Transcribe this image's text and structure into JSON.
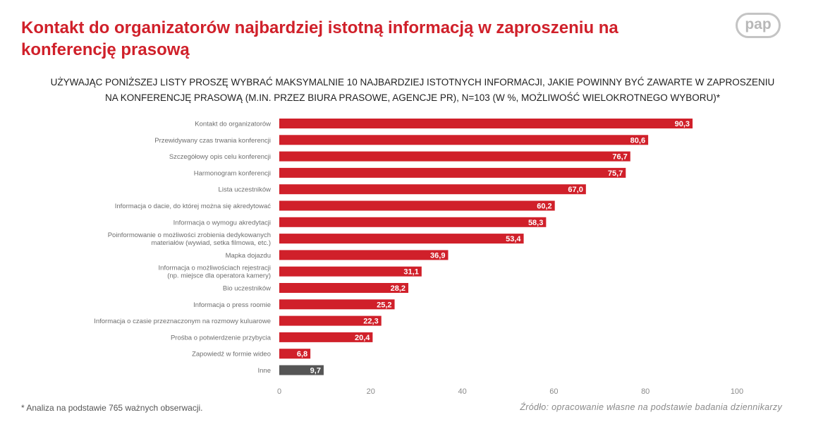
{
  "header": {
    "title": "Kontakt do organizatorów najbardziej istotną informacją w zaproszeniu na konferencję prasową",
    "logo_text": "pap"
  },
  "subtitle": {
    "line1": "UŻYWAJĄC PONIŻSZEJ LISTY PROSZĘ WYBRAĆ MAKSYMALNIE 10 NAJBARDZIEJ ISTOTNYCH INFORMACJI, JAKIE POWINNY BYĆ ZAWARTE W ZAPROSZENIU",
    "line2": "NA KONFERENCJĘ PRASOWĄ (M.IN. PRZEZ BIURA PRASOWE, AGENCJE PR), N=103 (W %, MOŻLIWOŚĆ WIELOKROTNEGO WYBORU)*"
  },
  "footer": {
    "footnote": "* Analiza na podstawie 765 ważnych obserwacji.",
    "source": "Źródło: opracowanie własne na podstawie badania dziennikarzy"
  },
  "colors": {
    "bar": "#d0202a",
    "bar_other": "#555555",
    "title": "#d0202a"
  },
  "chart_data": {
    "type": "bar",
    "orientation": "horizontal",
    "title": "Kontakt do organizatorów najbardziej istotną informacją w zaproszeniu na konferencję prasową",
    "xlabel": "",
    "ylabel": "",
    "xlim": [
      0,
      100
    ],
    "xticks": [
      0,
      20,
      40,
      60,
      80,
      100
    ],
    "grid": false,
    "categories": [
      [
        "Kontakt do organizatorów"
      ],
      [
        "Przewidywany czas trwania konferencji"
      ],
      [
        "Szczegółowy opis celu konferencji"
      ],
      [
        "Harmonogram konferencji"
      ],
      [
        "Lista uczestników"
      ],
      [
        "Informacja o dacie, do której można się akredytować"
      ],
      [
        "Informacja o wymogu akredytacji"
      ],
      [
        "Poinformowanie o możliwości zrobienia dedykowanych",
        "materiałów (wywiad, setka filmowa, etc.)"
      ],
      [
        "Mapka dojazdu"
      ],
      [
        "Informacja o możliwościach rejestracji",
        "(np. miejsce dla operatora kamery)"
      ],
      [
        "Bio uczestników"
      ],
      [
        "Informacja o press roomie"
      ],
      [
        "Informacja o czasie przeznaczonym na rozmowy kuluarowe"
      ],
      [
        "Prośba o potwierdzenie przybycia"
      ],
      [
        "Zapowiedź w formie wideo"
      ],
      [
        "Inne"
      ]
    ],
    "values": [
      90.3,
      80.6,
      76.7,
      75.7,
      67.0,
      60.2,
      58.3,
      53.4,
      36.9,
      31.1,
      28.2,
      25.2,
      22.3,
      20.4,
      6.8,
      9.7
    ],
    "value_labels": [
      "90,3",
      "80,6",
      "76,7",
      "75,7",
      "67,0",
      "60,2",
      "58,3",
      "53,4",
      "36,9",
      "31,1",
      "28,2",
      "25,2",
      "22,3",
      "20,4",
      "6,8",
      "9,7"
    ],
    "highlight_other": [
      false,
      false,
      false,
      false,
      false,
      false,
      false,
      false,
      false,
      false,
      false,
      false,
      false,
      false,
      false,
      true
    ]
  }
}
